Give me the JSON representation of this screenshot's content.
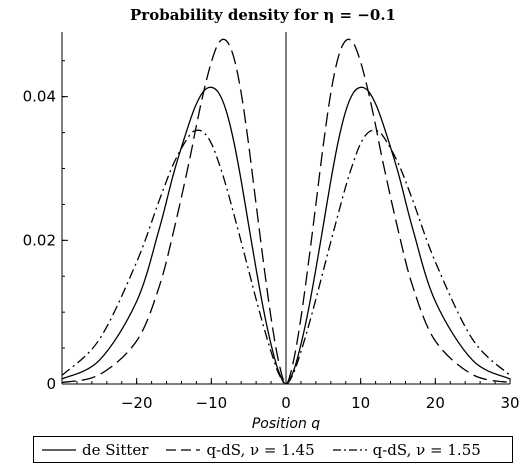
{
  "chart_data": {
    "type": "line",
    "title": "Probability density for η = −0.1",
    "xlabel": "Position q",
    "ylabel": "",
    "xlim": [
      -30,
      30
    ],
    "ylim": [
      0,
      0.049
    ],
    "x_ticks": [
      -20,
      -10,
      0,
      10,
      20,
      30
    ],
    "x_tick_labels": [
      "−20",
      "−10",
      "0",
      "10",
      "20",
      "30"
    ],
    "y_ticks": [
      0,
      0.02,
      0.04
    ],
    "y_tick_labels": [
      "0",
      "0.02",
      "0.04"
    ],
    "grid": false,
    "legend_position": "bottom",
    "x": [
      -30,
      -25,
      -20,
      -17,
      -15,
      -13,
      -12,
      -11,
      -10,
      -9,
      -8,
      -7,
      -6,
      -5,
      -4,
      -3,
      -2,
      -1,
      0,
      1,
      2,
      3,
      4,
      5,
      6,
      7,
      8,
      9,
      10,
      11,
      12,
      13,
      15,
      17,
      20,
      25,
      30
    ],
    "series": [
      {
        "name": "de Sitter",
        "style": "solid",
        "color": "#000000",
        "values": [
          0.0007,
          0.0033,
          0.0115,
          0.0215,
          0.0295,
          0.0362,
          0.039,
          0.0408,
          0.0413,
          0.0405,
          0.038,
          0.0338,
          0.0283,
          0.0221,
          0.016,
          0.0103,
          0.0055,
          0.0018,
          0.0,
          0.0018,
          0.0055,
          0.0103,
          0.016,
          0.0221,
          0.0283,
          0.0338,
          0.038,
          0.0405,
          0.0413,
          0.0408,
          0.039,
          0.0362,
          0.0295,
          0.0215,
          0.0115,
          0.0033,
          0.0007
        ]
      },
      {
        "name": "q-dS, ν = 1.45",
        "style": "dashed",
        "color": "#000000",
        "values": [
          0.0002,
          0.0013,
          0.006,
          0.0135,
          0.0215,
          0.0308,
          0.036,
          0.0408,
          0.0448,
          0.0475,
          0.0478,
          0.0455,
          0.0405,
          0.0333,
          0.025,
          0.0168,
          0.0092,
          0.0032,
          0.0,
          0.0032,
          0.0092,
          0.0168,
          0.025,
          0.0333,
          0.0405,
          0.0455,
          0.0478,
          0.0475,
          0.0448,
          0.0408,
          0.036,
          0.0308,
          0.0215,
          0.0135,
          0.006,
          0.0013,
          0.0002
        ]
      },
      {
        "name": "q-dS, ν = 1.55",
        "style": "dashdot",
        "color": "#000000",
        "values": [
          0.0012,
          0.0062,
          0.017,
          0.0255,
          0.0308,
          0.0345,
          0.0353,
          0.035,
          0.0335,
          0.0308,
          0.0275,
          0.0237,
          0.0198,
          0.0158,
          0.0118,
          0.008,
          0.0045,
          0.0015,
          0.0,
          0.0015,
          0.0045,
          0.008,
          0.0118,
          0.0158,
          0.0198,
          0.0237,
          0.0275,
          0.0308,
          0.0335,
          0.035,
          0.0353,
          0.0345,
          0.0308,
          0.0255,
          0.017,
          0.0062,
          0.0012
        ]
      }
    ]
  }
}
